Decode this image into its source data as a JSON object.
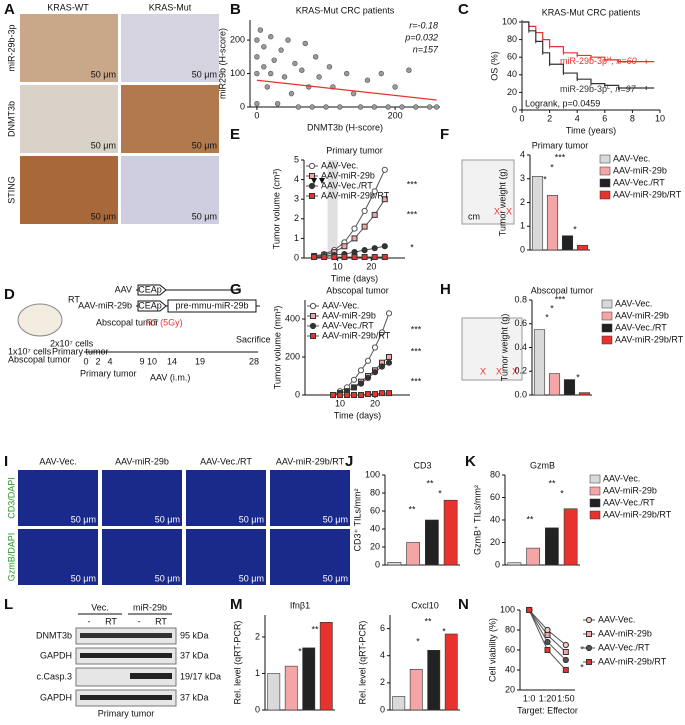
{
  "panel_labels": [
    "A",
    "B",
    "C",
    "D",
    "E",
    "F",
    "G",
    "H",
    "I",
    "J",
    "K",
    "L",
    "M",
    "N"
  ],
  "panel_a": {
    "columns": [
      "KRAS-WT",
      "KRAS-Mut"
    ],
    "rows": [
      "miR-29b-3p",
      "DNMT3b",
      "STING"
    ],
    "scale": "50 μm"
  },
  "panel_d": {
    "rt": "RT",
    "vectors": [
      "AAV",
      "AAV-miR-29b"
    ],
    "promoter": "CEAp",
    "insert": "pre-mmu-miR-29b",
    "cells_abscopal": "1x10⁷ cells",
    "abscopal_tumor": "Abscopal tumor",
    "cells_primary": "2x10⁷ cells",
    "primary_tumor": "Primary tumor",
    "rt_dose": "RT (5Gy)",
    "sacrifice": "Sacrifice",
    "days": [
      "0",
      "2",
      "4",
      "9",
      "10",
      "14",
      "19",
      "28"
    ],
    "aav": "AAV (i.m.)"
  },
  "panel_f_photo": {
    "scale": "cm",
    "mark": "X"
  },
  "panel_h_photo": {
    "mark": "X"
  },
  "panel_i": {
    "columns": [
      "AAV-Vec.",
      "AAV-miR-29b",
      "AAV-Vec./RT",
      "AAV-miR-29b/RT"
    ],
    "rows": [
      "CD3/DAPI",
      "GzmB/DAPI"
    ],
    "scale": "50 μm"
  },
  "panel_l": {
    "groups": [
      "Vec.",
      "miR-29b"
    ],
    "lanes": [
      "-",
      "RT",
      "-",
      "RT"
    ],
    "proteins": [
      "DNMT3b",
      "GAPDH",
      "c.Casp.3",
      "GAPDH"
    ],
    "sizes": [
      "95 kDa",
      "37 kDa",
      "19/17 kDa",
      "37 kDa"
    ],
    "caption": "Primary tumor"
  },
  "chart_data": [
    {
      "type": "scatter",
      "title": "KRAS-Mut CRC patients",
      "xlabel": "DNMT3b (H-score)",
      "ylabel": "miR29b (H-score)",
      "stats": [
        "r=-0.18",
        "p=0.032",
        "n=157"
      ],
      "color": "#9a9a9a",
      "x": [
        0,
        0,
        0,
        0,
        5,
        10,
        10,
        15,
        20,
        20,
        25,
        30,
        35,
        40,
        45,
        50,
        55,
        60,
        65,
        70,
        75,
        80,
        85,
        90,
        100,
        105,
        110,
        120,
        130,
        140,
        150,
        160,
        170,
        180,
        190,
        200,
        210,
        220,
        230,
        250,
        260
      ],
      "values": [
        200,
        150,
        100,
        10,
        230,
        180,
        120,
        60,
        210,
        100,
        140,
        10,
        170,
        90,
        200,
        40,
        130,
        0,
        110,
        190,
        60,
        0,
        150,
        90,
        0,
        120,
        60,
        0,
        100,
        40,
        0,
        80,
        0,
        100,
        0,
        60,
        0,
        110,
        0,
        0,
        0
      ],
      "fit": {
        "x": [
          0,
          260
        ],
        "values": [
          80,
          21
        ],
        "color": "#e8322e"
      },
      "xlim": [
        -10,
        265
      ],
      "ylim": [
        0,
        260
      ],
      "xticks": [
        0,
        200
      ],
      "yticks": [
        0,
        100,
        200
      ]
    },
    {
      "type": "step",
      "title": "KRAS-Mut CRC patients",
      "xlabel": "Time (years)",
      "ylabel": "OS (%)",
      "test": "Logrank, p=0.0459",
      "series": [
        {
          "name": "miR-29b-3p",
          "sup": "H",
          "n": ", n=60",
          "color": "#e8322e",
          "x": [
            0,
            0.5,
            1,
            1.5,
            2,
            3,
            4,
            5,
            6,
            7,
            9
          ],
          "values": [
            100,
            95,
            88,
            80,
            72,
            65,
            62,
            60,
            57,
            55,
            55
          ]
        },
        {
          "name": "miR-29b-3p",
          "sup": "L",
          "n": ", n=97",
          "color": "#333333",
          "x": [
            0,
            0.5,
            1,
            1.5,
            2,
            3,
            4,
            5,
            6,
            7,
            9
          ],
          "values": [
            100,
            90,
            78,
            65,
            52,
            42,
            35,
            30,
            28,
            25,
            25
          ]
        }
      ],
      "xlim": [
        0,
        10
      ],
      "ylim": [
        0,
        100
      ],
      "xticks": [
        0,
        2,
        4,
        6,
        8,
        10
      ],
      "yticks": [
        0,
        20,
        40,
        60,
        80,
        100
      ]
    },
    {
      "type": "line",
      "title": "Primary tumor",
      "xlabel": "Time (days)",
      "ylabel": "Tumor volume (cm³)",
      "shade": [
        7,
        10
      ],
      "annotations": [
        "***",
        "***",
        "*"
      ],
      "series": [
        {
          "name": "AAV-Vec.",
          "color": "#ffffff",
          "marker": "circle",
          "x": [
            3,
            6,
            9,
            12,
            15,
            18,
            21,
            24
          ],
          "values": [
            0.1,
            0.2,
            0.4,
            0.8,
            1.5,
            2.4,
            3.4,
            4.5
          ]
        },
        {
          "name": "AAV-miR-29b",
          "color": "#f4a6a6",
          "marker": "square",
          "x": [
            3,
            6,
            9,
            12,
            15,
            18,
            21,
            24
          ],
          "values": [
            0.1,
            0.15,
            0.3,
            0.6,
            1.0,
            1.6,
            2.2,
            3.0
          ]
        },
        {
          "name": "AAV-Vec./RT",
          "color": "#333333",
          "marker": "circle",
          "x": [
            3,
            6,
            9,
            12,
            15,
            18,
            21,
            24
          ],
          "values": [
            0.1,
            0.1,
            0.15,
            0.2,
            0.3,
            0.4,
            0.5,
            0.6
          ]
        },
        {
          "name": "AAV-miR-29b/RT",
          "color": "#e8322e",
          "marker": "square",
          "x": [
            3,
            6,
            9,
            12,
            15,
            18,
            21,
            24
          ],
          "values": [
            0.05,
            0.05,
            0.05,
            0.05,
            0.05,
            0.05,
            0.05,
            0.05
          ]
        }
      ],
      "xlim": [
        0,
        30
      ],
      "ylim": [
        0,
        5
      ],
      "xticks": [
        10,
        20
      ],
      "yticks": [
        0,
        1,
        2,
        3,
        4,
        5
      ]
    },
    {
      "type": "bar",
      "title": "Primary tumor",
      "ylabel": "Tumor weight (g)",
      "legend": true,
      "annotations": [
        "*",
        "*",
        "***",
        "*"
      ],
      "categories": [
        "AAV-Vec.",
        "AAV-miR-29b",
        "AAV-Vec./RT",
        "AAV-miR-29b/RT"
      ],
      "values": [
        3.1,
        2.3,
        0.6,
        0.2
      ],
      "colors": [
        "#d9d9d9",
        "#f4a6a6",
        "#222222",
        "#e8322e"
      ],
      "ylim": [
        0,
        4
      ],
      "yticks": [
        0,
        1,
        2,
        3,
        4
      ]
    },
    {
      "type": "line",
      "title": "Abscopal tumor",
      "xlabel": "Time (days)",
      "ylabel": "Tumor volume (mm³)",
      "annotations": [
        "***",
        "***",
        "***"
      ],
      "series": [
        {
          "name": "AAV-Vec.",
          "color": "#ffffff",
          "marker": "circle",
          "x": [
            8,
            10,
            12,
            14,
            16,
            18,
            20,
            22,
            24
          ],
          "values": [
            0,
            20,
            40,
            80,
            130,
            180,
            250,
            330,
            430
          ]
        },
        {
          "name": "AAV-miR-29b",
          "color": "#f4a6a6",
          "marker": "square",
          "x": [
            8,
            10,
            12,
            14,
            16,
            18,
            20,
            22,
            24
          ],
          "values": [
            0,
            10,
            20,
            40,
            70,
            100,
            130,
            170,
            200
          ]
        },
        {
          "name": "AAV-Vec./RT",
          "color": "#333333",
          "marker": "circle",
          "x": [
            8,
            10,
            12,
            14,
            16,
            18,
            20,
            22,
            24
          ],
          "values": [
            0,
            10,
            20,
            40,
            60,
            90,
            120,
            150,
            170
          ]
        },
        {
          "name": "AAV-miR-29b/RT",
          "color": "#e8322e",
          "marker": "square",
          "x": [
            8,
            10,
            12,
            14,
            16,
            18,
            20,
            22,
            24
          ],
          "values": [
            0,
            0,
            0,
            0,
            0,
            5,
            5,
            10,
            10
          ]
        }
      ],
      "xlim": [
        0,
        30
      ],
      "ylim": [
        0,
        500
      ],
      "xticks": [
        10,
        20
      ],
      "yticks": [
        0,
        200,
        400
      ]
    },
    {
      "type": "bar",
      "title": "Abscopal tumor",
      "ylabel": "Tumor weight (g)",
      "legend": true,
      "annotations": [
        "*",
        "*",
        "***",
        "*"
      ],
      "categories": [
        "AAV-Vec.",
        "AAV-miR-29b",
        "AAV-Vec./RT",
        "AAV-miR-29b/RT"
      ],
      "values": [
        0.55,
        0.18,
        0.13,
        0.02
      ],
      "colors": [
        "#d9d9d9",
        "#f4a6a6",
        "#222222",
        "#e8322e"
      ],
      "ylim": [
        0,
        0.8
      ],
      "yticks": [
        {
          "value": 0,
          "label": "0.0"
        },
        0.2,
        0.4,
        0.6,
        0.8
      ]
    },
    {
      "type": "bar",
      "title": "CD3",
      "ylabel": "CD3⁺ TILs/mm²",
      "legend": false,
      "annotations": [
        "**",
        "*",
        "**"
      ],
      "categories": [
        "AAV-Vec.",
        "AAV-miR-29b",
        "AAV-Vec./RT",
        "AAV-miR-29b/RT"
      ],
      "values": [
        3,
        25,
        50,
        72
      ],
      "colors": [
        "#d9d9d9",
        "#f4a6a6",
        "#222222",
        "#e8322e"
      ],
      "ylim": [
        0,
        100
      ],
      "yticks": [
        0,
        20,
        40,
        60,
        80,
        100
      ]
    },
    {
      "type": "bar",
      "title": "GzmB",
      "ylabel": "GzmB⁺ TILs/mm²",
      "legend": true,
      "annotations": [
        "**",
        "*",
        "**"
      ],
      "categories": [
        "AAV-Vec.",
        "AAV-miR-29b",
        "AAV-Vec./RT",
        "AAV-miR-29b/RT"
      ],
      "values": [
        2,
        15,
        33,
        50
      ],
      "colors": [
        "#d9d9d9",
        "#f4a6a6",
        "#222222",
        "#e8322e"
      ],
      "ylim": [
        0,
        80
      ],
      "yticks": [
        0,
        20,
        40,
        60,
        80
      ]
    },
    {
      "type": "bar",
      "title": "Ifnβ1",
      "ylabel": "Rel. level (qRT-PCR)",
      "legend": false,
      "annotations": [
        "*",
        "**"
      ],
      "categories": [
        "AAV-Vec.",
        "AAV-miR-29b",
        "AAV-Vec./RT",
        "AAV-miR-29b/RT"
      ],
      "values": [
        1,
        1.2,
        1.7,
        2.4
      ],
      "colors": [
        "#d9d9d9",
        "#f4a6a6",
        "#222222",
        "#e8322e"
      ],
      "ylim": [
        0,
        2.6
      ],
      "yticks": [
        0,
        1,
        2
      ]
    },
    {
      "type": "bar",
      "title": "Cxcl10",
      "ylabel": "Rel. level (qRT-PCR)",
      "legend": false,
      "annotations": [
        "*",
        "**",
        "*"
      ],
      "categories": [
        "AAV-Vec.",
        "AAV-miR-29b",
        "AAV-Vec./RT",
        "AAV-miR-29b/RT"
      ],
      "values": [
        1,
        3,
        4.4,
        5.6
      ],
      "colors": [
        "#d9d9d9",
        "#f4a6a6",
        "#222222",
        "#e8322e"
      ],
      "ylim": [
        0,
        7
      ],
      "yticks": [
        0,
        2,
        4,
        6
      ]
    },
    {
      "type": "line",
      "xlabel": "Target: Effector",
      "ylabel": "Cell viability (%)",
      "annotations": [
        "*",
        "*"
      ],
      "categories": [
        "1:0",
        "1:20",
        "1:50"
      ],
      "series": [
        {
          "name": "AAV-Vec.",
          "color": "#f7c9c9",
          "marker": "circle",
          "values": [
            100,
            80,
            65
          ]
        },
        {
          "name": "AAV-miR-29b",
          "color": "#f4a6a6",
          "marker": "square",
          "values": [
            100,
            75,
            58
          ]
        },
        {
          "name": "AAV-Vec./RT",
          "color": "#555555",
          "marker": "circle",
          "values": [
            100,
            68,
            50
          ]
        },
        {
          "name": "AAV-miR-29b/RT",
          "color": "#e8322e",
          "marker": "square",
          "values": [
            100,
            60,
            40
          ]
        }
      ],
      "ylim": [
        20,
        100
      ],
      "yticks": [
        20,
        40,
        60,
        80,
        100
      ]
    }
  ]
}
